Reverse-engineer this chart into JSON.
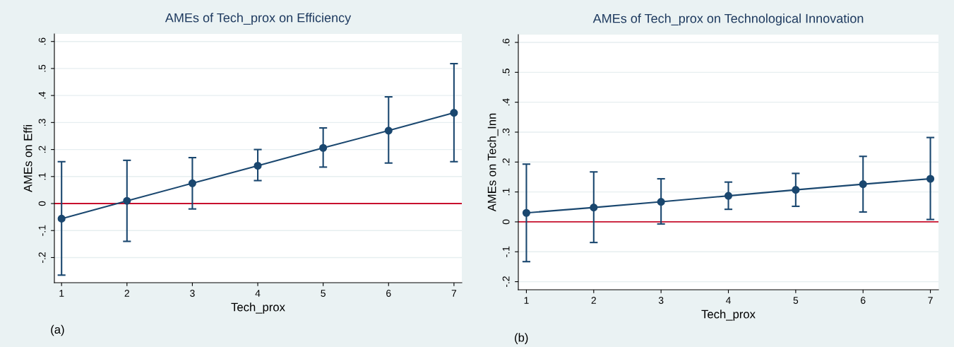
{
  "chart_data": [
    {
      "type": "line",
      "title": "AMEs of Tech_prox on Efficiency",
      "xlabel": "Tech_prox",
      "ylabel": "AMEs on Effi",
      "x": [
        1,
        2,
        3,
        4,
        5,
        6,
        7
      ],
      "series": [
        {
          "color": "#1a476f",
          "values": [
            -0.056,
            0.01,
            0.075,
            0.14,
            0.206,
            0.27,
            0.336
          ],
          "errors": [
            [
              -0.265,
              0.155
            ],
            [
              -0.14,
              0.16
            ],
            [
              -0.02,
              0.17
            ],
            [
              0.085,
              0.2
            ],
            [
              0.135,
              0.28
            ],
            [
              0.15,
              0.395
            ],
            [
              0.155,
              0.518
            ]
          ]
        }
      ],
      "xlim": [
        0.89,
        7.12
      ],
      "xticks": [
        1,
        2,
        3,
        4,
        5,
        6,
        7
      ],
      "ylim": [
        -0.293,
        0.628
      ],
      "yticks": [
        {
          "value": -0.2,
          "label": "-.2"
        },
        {
          "value": -0.1,
          "label": "-.1"
        },
        {
          "value": 0,
          "label": "0"
        },
        {
          "value": 0.1,
          "label": ".1"
        },
        {
          "value": 0.2,
          "label": ".2"
        },
        {
          "value": 0.3,
          "label": ".3"
        },
        {
          "value": 0.4,
          "label": ".4"
        },
        {
          "value": 0.5,
          "label": ".5"
        },
        {
          "value": 0.6,
          "label": ".6"
        }
      ],
      "ref_lines": [
        {
          "axis": "y",
          "value": 0,
          "color": "#c8102e"
        }
      ],
      "grid": "y",
      "marker": "circle",
      "line_style": "solid",
      "legend": false,
      "annotations": [
        "(a)"
      ]
    },
    {
      "type": "line",
      "title": "AMEs of Tech_prox on Technological Innovation",
      "xlabel": "Tech_prox",
      "ylabel": "AMEs on Tech_Inn",
      "x": [
        1,
        2,
        3,
        4,
        5,
        6,
        7
      ],
      "series": [
        {
          "color": "#1a476f",
          "values": [
            0.03,
            0.048,
            0.067,
            0.087,
            0.107,
            0.126,
            0.144
          ],
          "errors": [
            [
              -0.133,
              0.193
            ],
            [
              -0.069,
              0.167
            ],
            [
              -0.007,
              0.144
            ],
            [
              0.042,
              0.133
            ],
            [
              0.052,
              0.162
            ],
            [
              0.033,
              0.219
            ],
            [
              0.008,
              0.282
            ]
          ]
        }
      ],
      "xlim": [
        0.88,
        7.12
      ],
      "xticks": [
        1,
        2,
        3,
        4,
        5,
        6,
        7
      ],
      "ylim": [
        -0.227,
        0.626
      ],
      "yticks": [
        {
          "value": -0.2,
          "label": "-.2"
        },
        {
          "value": -0.1,
          "label": "-.1"
        },
        {
          "value": 0,
          "label": "0"
        },
        {
          "value": 0.1,
          "label": ".1"
        },
        {
          "value": 0.2,
          "label": ".2"
        },
        {
          "value": 0.3,
          "label": ".3"
        },
        {
          "value": 0.4,
          "label": ".4"
        },
        {
          "value": 0.5,
          "label": ".5"
        },
        {
          "value": 0.6,
          "label": ".6"
        }
      ],
      "ref_lines": [
        {
          "axis": "y",
          "value": 0,
          "color": "#c8102e"
        }
      ],
      "grid": "y",
      "marker": "circle",
      "line_style": "solid",
      "legend": false,
      "annotations": [
        "(b)"
      ]
    }
  ]
}
